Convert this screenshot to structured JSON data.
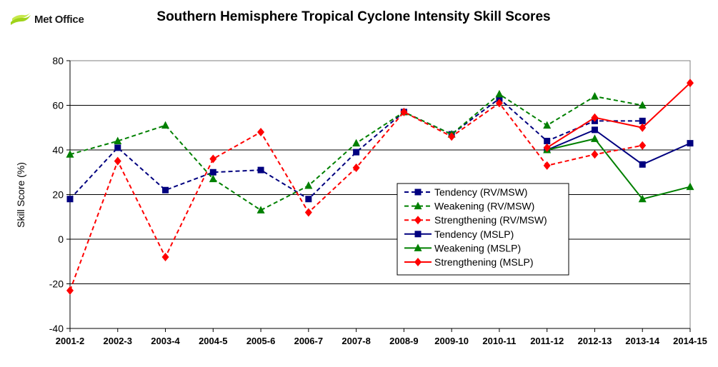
{
  "brand": {
    "name": "Met Office"
  },
  "chart_data": {
    "type": "line",
    "title": "Southern Hemisphere Tropical Cyclone Intensity Skill Scores",
    "ylabel": "Skill Score (%)",
    "xlabel": "",
    "ylim": [
      -40,
      80
    ],
    "yticks": [
      -40,
      -20,
      0,
      20,
      40,
      60,
      80
    ],
    "grid": true,
    "legend_position": "lower-right",
    "categories": [
      "2001-2",
      "2002-3",
      "2003-4",
      "2004-5",
      "2005-6",
      "2006-7",
      "2007-8",
      "2008-9",
      "2009-10",
      "2010-11",
      "2011-12",
      "2012-13",
      "2013-14",
      "2014-15"
    ],
    "series": [
      {
        "name": "Tendency (RV/MSW)",
        "color": "#00007F",
        "dash": true,
        "marker": "square",
        "values": [
          18,
          41,
          22,
          30,
          31,
          18,
          39,
          57,
          47,
          63,
          44,
          53,
          53,
          null
        ]
      },
      {
        "name": "Weakening  (RV/MSW)",
        "color": "#008000",
        "dash": true,
        "marker": "triangle",
        "values": [
          38,
          44,
          51,
          27,
          13,
          24,
          43,
          57,
          47,
          65,
          51,
          64,
          60,
          null
        ]
      },
      {
        "name": "Strengthening  (RV/MSW)",
        "color": "#FF0000",
        "dash": true,
        "marker": "diamond",
        "values": [
          -23,
          35,
          -8,
          36,
          48,
          12,
          32,
          57,
          46,
          61,
          33,
          38,
          42,
          null
        ]
      },
      {
        "name": "Tendency (MSLP)",
        "color": "#00007F",
        "dash": false,
        "marker": "square",
        "values": [
          null,
          null,
          null,
          null,
          null,
          null,
          null,
          null,
          null,
          null,
          40,
          49,
          33.5,
          43
        ]
      },
      {
        "name": "Weakening (MSLP)",
        "color": "#008000",
        "dash": false,
        "marker": "triangle",
        "values": [
          null,
          null,
          null,
          null,
          null,
          null,
          null,
          null,
          null,
          null,
          40,
          45,
          18,
          23.5
        ]
      },
      {
        "name": "Strengthening (MSLP)",
        "color": "#FF0000",
        "dash": false,
        "marker": "diamond",
        "values": [
          null,
          null,
          null,
          null,
          null,
          null,
          null,
          null,
          null,
          null,
          41,
          54.5,
          50,
          70
        ]
      }
    ]
  }
}
